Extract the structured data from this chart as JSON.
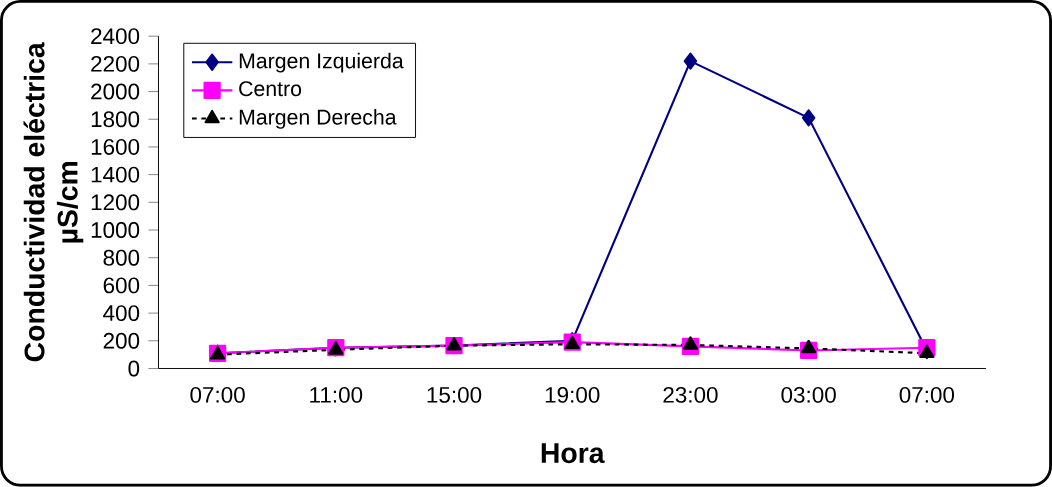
{
  "chart_data": {
    "type": "line",
    "xlabel": "Hora",
    "ylabel": "Conductividad eléctrica µS/cm",
    "categories": [
      "07:00",
      "11:00",
      "15:00",
      "19:00",
      "23:00",
      "03:00",
      "07:00"
    ],
    "series": [
      {
        "name": "Margen Izquierda",
        "color": "#000080",
        "marker": "diamond",
        "line_style": "solid",
        "values": [
          110,
          150,
          165,
          200,
          2220,
          1810,
          130
        ]
      },
      {
        "name": "Centro",
        "color": "#ff00ff",
        "marker": "square",
        "line_style": "solid",
        "values": [
          110,
          150,
          165,
          190,
          160,
          130,
          150
        ]
      },
      {
        "name": "Margen Derecha",
        "color": "#000000",
        "marker": "triangle",
        "line_style": "dotted",
        "values": [
          100,
          135,
          165,
          175,
          170,
          145,
          110
        ]
      }
    ],
    "ylim": [
      0,
      2400
    ],
    "yticks": [
      0,
      200,
      400,
      600,
      800,
      1000,
      1200,
      1400,
      1600,
      1800,
      2000,
      2200,
      2400
    ],
    "grid": false,
    "legend": "top left"
  }
}
